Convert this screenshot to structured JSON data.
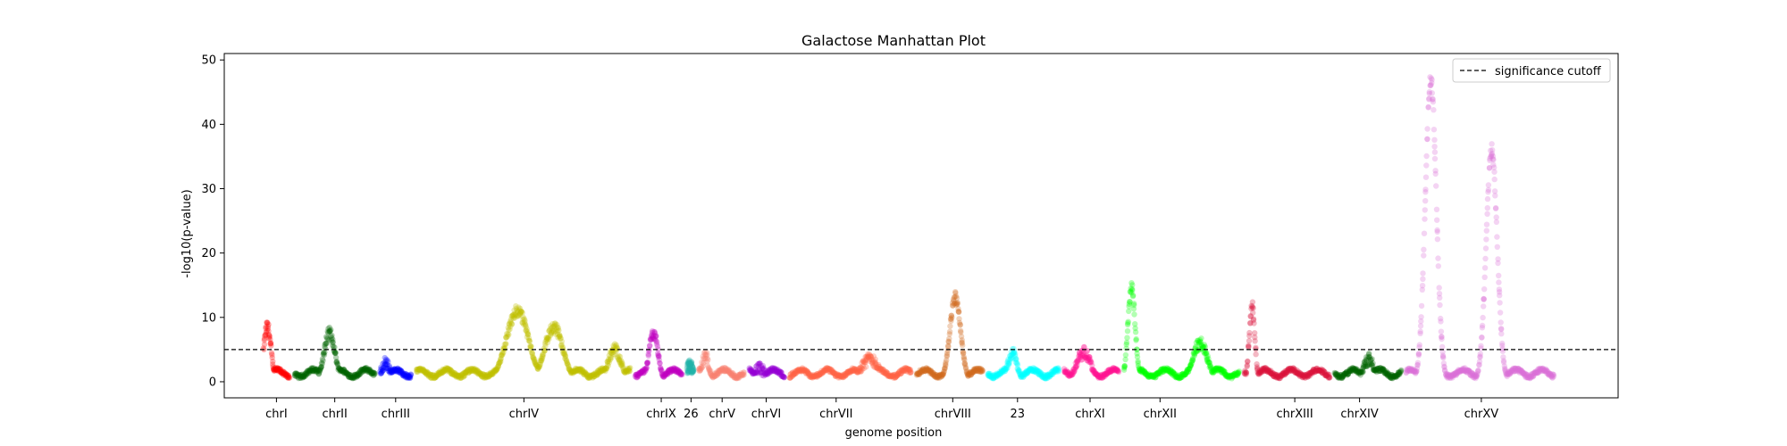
{
  "chart_data": {
    "type": "scatter",
    "title": "Galactose Manhattan Plot",
    "xlabel": "genome position",
    "ylabel": "-log10(p-value)",
    "ylim": [
      -2.5,
      51
    ],
    "yticks": [
      0,
      10,
      20,
      30,
      40,
      50
    ],
    "grid": false,
    "legend": {
      "position": "top-right",
      "entries": [
        {
          "label": "significance cutoff",
          "style": "dashed-line"
        }
      ]
    },
    "threshold": {
      "y": 5,
      "label": "significance cutoff"
    },
    "chromosomes": [
      {
        "label": "chrI",
        "color": "#ff0000",
        "range": [
          0.0,
          2.4
        ],
        "tick": 1.2,
        "peaks": [
          {
            "x": 0.5,
            "y": 8.5,
            "w": 0.4
          }
        ]
      },
      {
        "label": "chrII",
        "color": "#006400",
        "range": [
          2.4,
          9.0
        ],
        "tick": 5.7,
        "peaks": [
          {
            "x": 5.3,
            "y": 7.5,
            "w": 0.6
          }
        ]
      },
      {
        "label": "chrIII",
        "color": "#0000ff",
        "range": [
          9.0,
          11.8
        ],
        "tick": 10.4,
        "peaks": [
          {
            "x": 9.6,
            "y": 2.8,
            "w": 0.5
          }
        ]
      },
      {
        "label": "chrIV",
        "color": "#bfbf00",
        "range": [
          11.8,
          28.7
        ],
        "tick": 20.3,
        "peaks": [
          {
            "x": 19.8,
            "y": 11.0,
            "w": 1.2
          },
          {
            "x": 22.6,
            "y": 8.5,
            "w": 1.0
          },
          {
            "x": 27.3,
            "y": 5.0,
            "w": 0.7
          }
        ]
      },
      {
        "label": "chrIX",
        "color": "#bf00bf",
        "range": [
          28.7,
          32.7
        ],
        "tick": 30.9,
        "peaks": [
          {
            "x": 30.3,
            "y": 7.5,
            "w": 0.5
          }
        ]
      },
      {
        "label": "26",
        "color": "#20b2aa",
        "range": [
          32.7,
          33.6
        ],
        "tick": 33.2,
        "peaks": [
          {
            "x": 33.1,
            "y": 2.5,
            "w": 0.4
          }
        ]
      },
      {
        "label": "chrV",
        "color": "#fa8072",
        "range": [
          33.6,
          37.5
        ],
        "tick": 35.6,
        "peaks": [
          {
            "x": 34.3,
            "y": 4.0,
            "w": 0.4
          }
        ]
      },
      {
        "label": "chrVI",
        "color": "#9400d3",
        "range": [
          37.5,
          40.6
        ],
        "tick": 39.0,
        "peaks": [
          {
            "x": 38.5,
            "y": 2.0,
            "w": 0.6
          }
        ]
      },
      {
        "label": "chrVII",
        "color": "#ff6347",
        "range": [
          40.6,
          50.4
        ],
        "tick": 44.4,
        "peaks": [
          {
            "x": 47.0,
            "y": 3.5,
            "w": 1.0
          }
        ]
      },
      {
        "label": "chrVIII",
        "color": "#d2691e",
        "range": [
          50.4,
          55.9
        ],
        "tick": 53.4,
        "peaks": [
          {
            "x": 53.6,
            "y": 13.0,
            "w": 0.6
          }
        ]
      },
      {
        "label": "23",
        "color": "#00ffff",
        "range": [
          55.9,
          61.8
        ],
        "tick": 58.4,
        "peaks": [
          {
            "x": 58.0,
            "y": 4.5,
            "w": 0.5
          }
        ]
      },
      {
        "label": "chrXI",
        "color": "#ff1493",
        "range": [
          61.8,
          66.4
        ],
        "tick": 64.0,
        "peaks": [
          {
            "x": 63.5,
            "y": 4.5,
            "w": 0.8
          }
        ]
      },
      {
        "label": "chrXII",
        "color": "#00ff00",
        "range": [
          66.4,
          75.7
        ],
        "tick": 69.4,
        "peaks": [
          {
            "x": 67.2,
            "y": 14.5,
            "w": 0.4
          },
          {
            "x": 72.5,
            "y": 6.0,
            "w": 0.8
          }
        ]
      },
      {
        "label": "chrXIII",
        "color": "#dc143c",
        "range": [
          75.7,
          82.7
        ],
        "tick": 79.8,
        "peaks": [
          {
            "x": 76.5,
            "y": 12.0,
            "w": 0.3
          }
        ]
      },
      {
        "label": "chrXIV",
        "color": "#006400",
        "range": [
          82.7,
          88.2
        ],
        "tick": 84.8,
        "peaks": [
          {
            "x": 85.5,
            "y": 3.5,
            "w": 0.6
          }
        ]
      },
      {
        "label": "chrXV",
        "color": "#da70d6",
        "range": [
          88.2,
          100.0
        ],
        "tick": 94.2,
        "peaks": [
          {
            "x": 90.3,
            "y": 47.0,
            "w": 0.6
          },
          {
            "x": 95.0,
            "y": 36.0,
            "w": 0.6
          }
        ]
      }
    ]
  }
}
